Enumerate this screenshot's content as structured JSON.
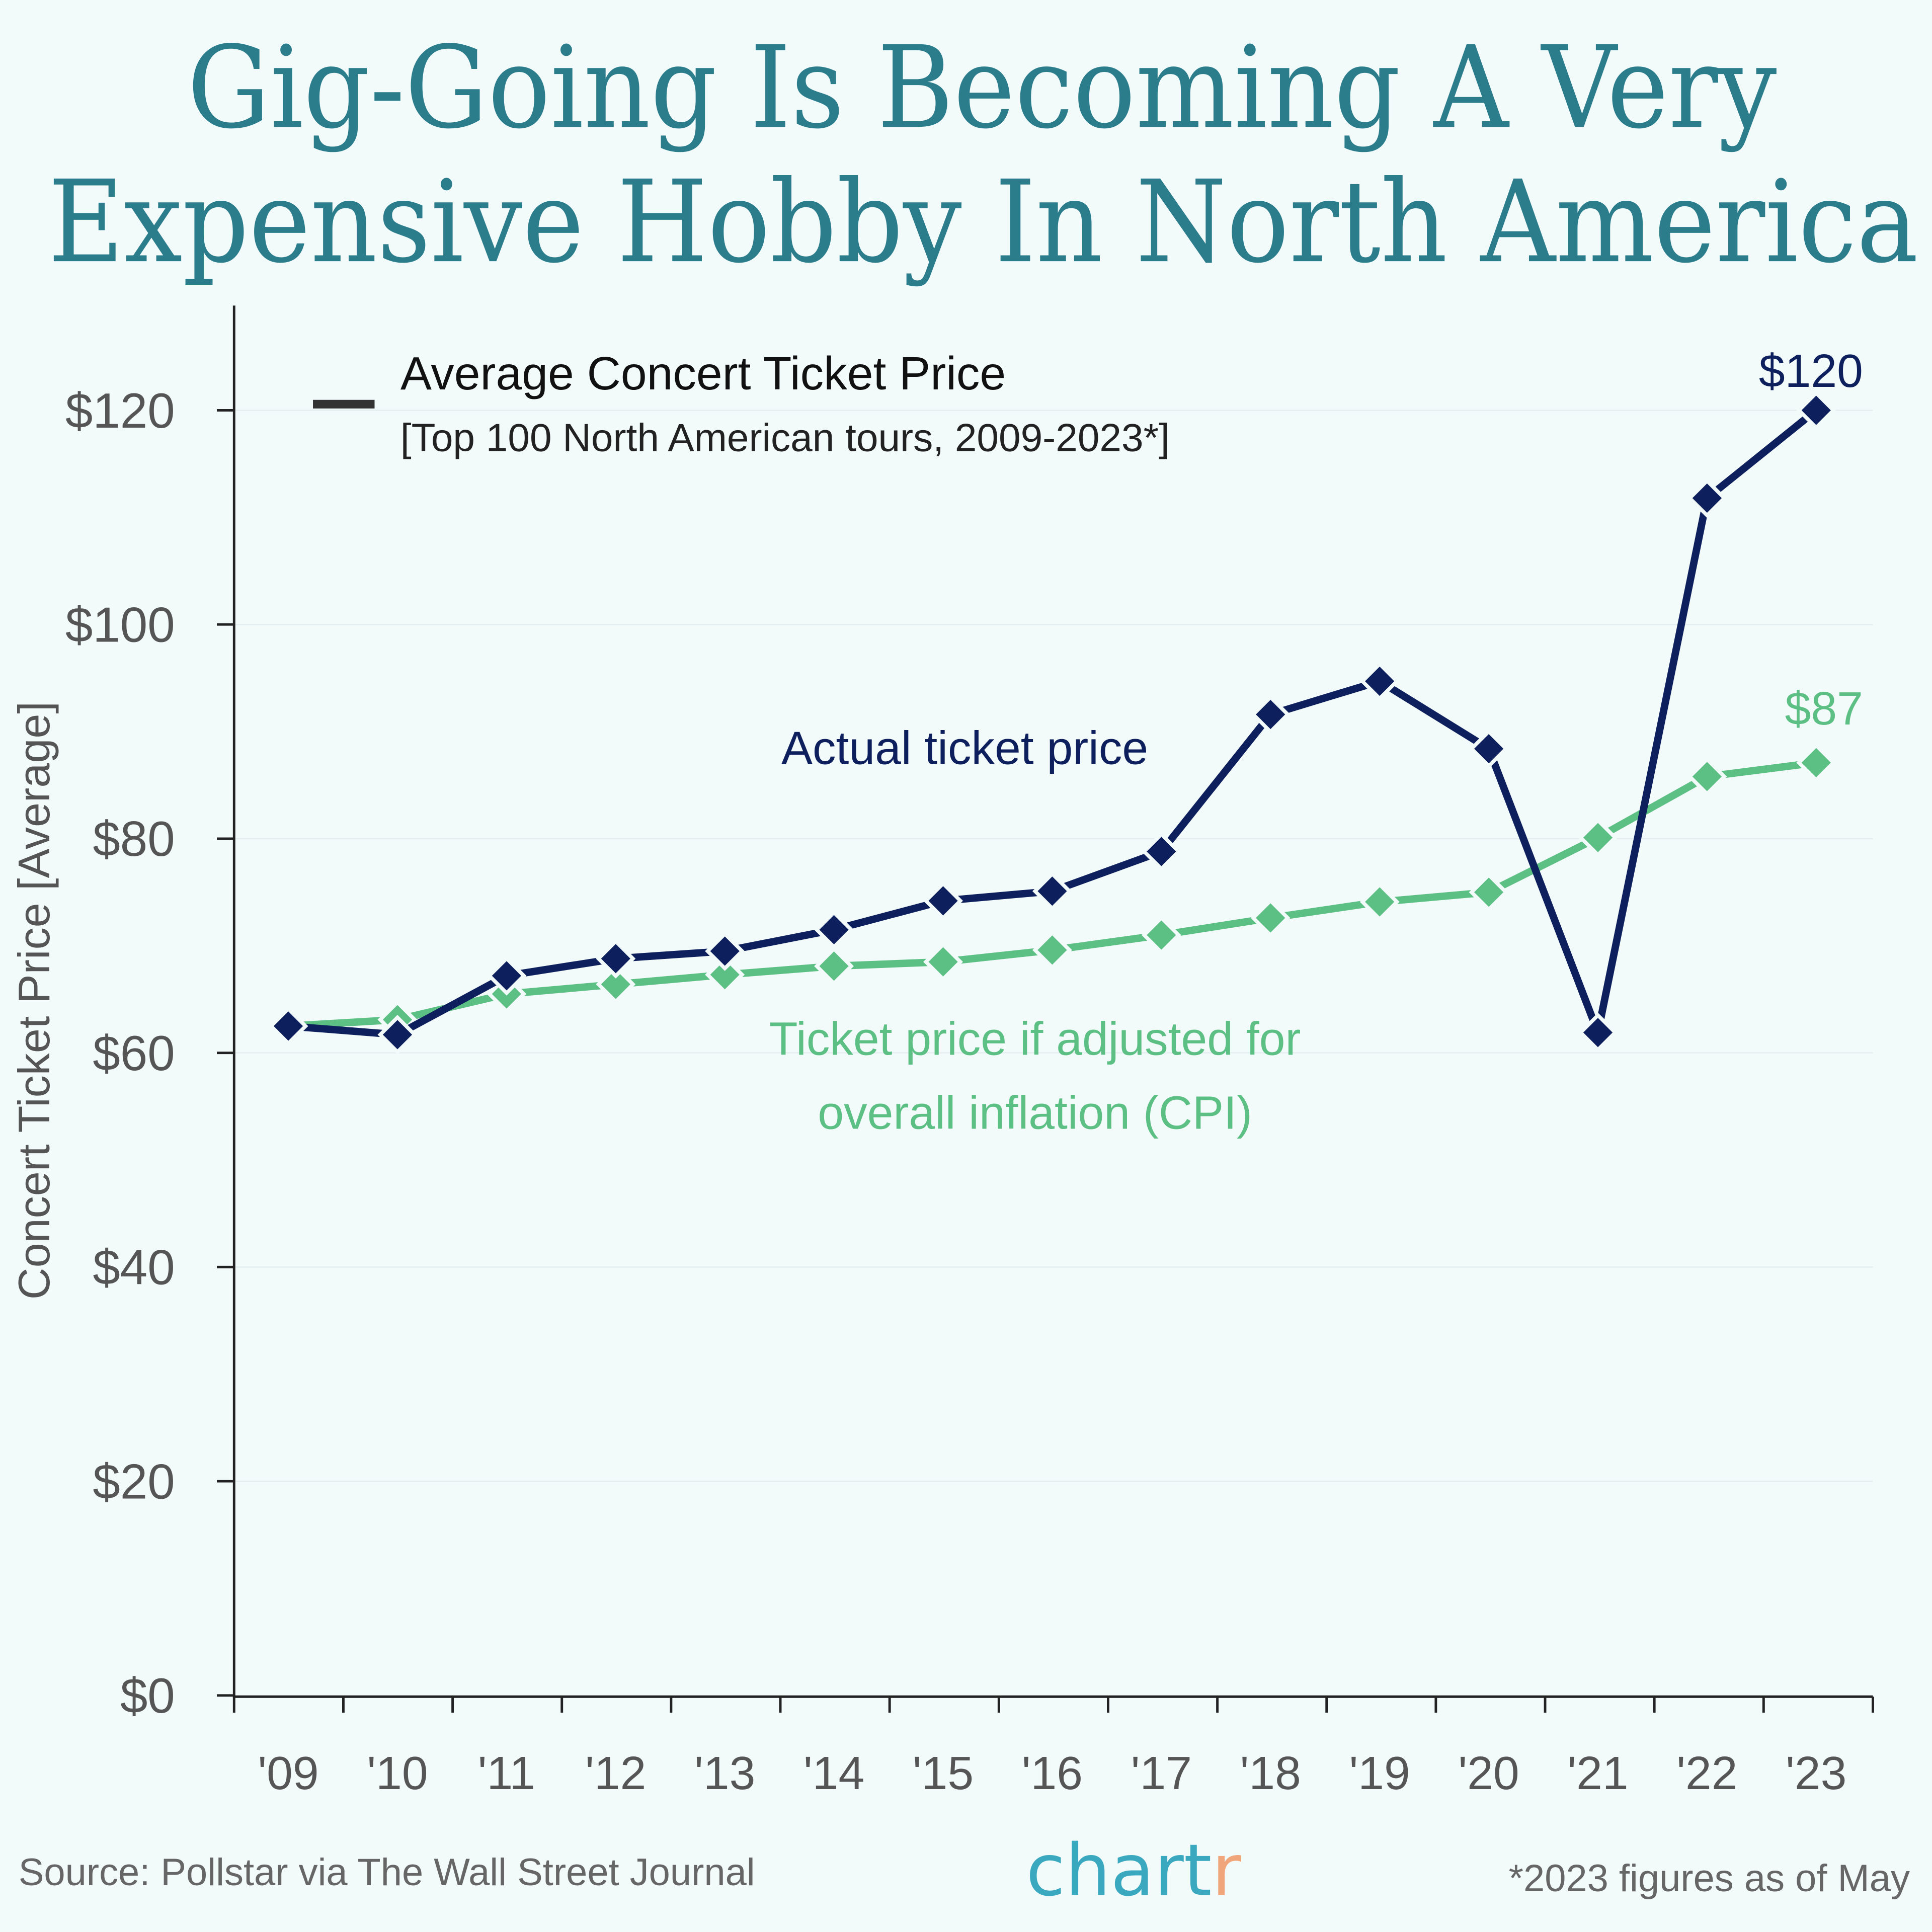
{
  "title_lines": [
    "Gig-Going Is Becoming A Very",
    "Expensive Hobby In North America"
  ],
  "chart_data": {
    "type": "line",
    "title": "Gig-Going Is Becoming A Very Expensive Hobby In North America",
    "ylabel": "Concert Ticket Price [Average]",
    "xlabel": "",
    "categories": [
      "'09",
      "'10",
      "'11",
      "'12",
      "'13",
      "'14",
      "'15",
      "'16",
      "'17",
      "'18",
      "'19",
      "'20",
      "'21",
      "'22",
      "'23"
    ],
    "yticks": [
      "$0",
      "$20",
      "$40",
      "$60",
      "$80",
      "$100",
      "$120"
    ],
    "ylim": [
      0,
      130
    ],
    "grid": "horizontal, faint",
    "legend": {
      "title": "Average Concert Ticket Price",
      "subtitle": "[Top 100 North American tours, 2009-2023*]",
      "placement": "top-left"
    },
    "series": [
      {
        "name": "Actual ticket price",
        "color": "#0d1f5c",
        "values": [
          62.5,
          61.7,
          67.2,
          68.8,
          69.5,
          71.5,
          74.2,
          75.1,
          78.8,
          91.6,
          94.7,
          88.4,
          61.9,
          111.8,
          120
        ],
        "end_label": "$120"
      },
      {
        "name": "Ticket price if adjusted for overall inflation (CPI)",
        "name_lines": [
          "Ticket price if adjusted for",
          "overall inflation (CPI)"
        ],
        "color": "#5cbf84",
        "values": [
          62.5,
          63.1,
          65.5,
          66.4,
          67.3,
          68.1,
          68.5,
          69.6,
          71.0,
          72.6,
          74.1,
          75.0,
          80.1,
          85.8,
          87.1
        ],
        "end_label": "$87"
      }
    ]
  },
  "footer": {
    "source": "Source: Pollstar via The Wall Street Journal",
    "logo_text": "chartr",
    "note": "*2023 figures as of May"
  }
}
